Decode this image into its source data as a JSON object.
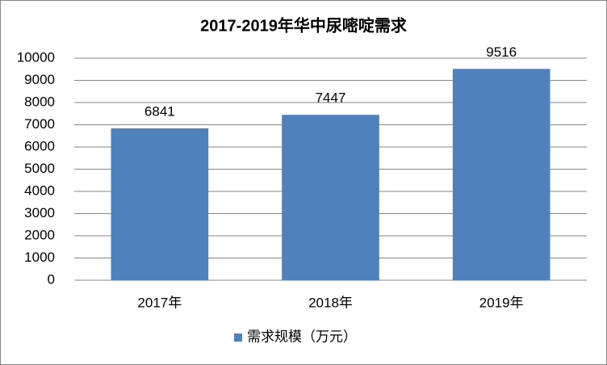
{
  "chart_data": {
    "type": "bar",
    "title": "2017-2019年华中尿嘧啶需求",
    "categories": [
      "2017年",
      "2018年",
      "2019年"
    ],
    "series": [
      {
        "name": "需求规模（万元）",
        "color": "#4f81bd",
        "values": [
          6841,
          7447,
          9516
        ]
      }
    ],
    "ylim": [
      0,
      10000
    ],
    "yticks": [
      0,
      1000,
      2000,
      3000,
      4000,
      5000,
      6000,
      7000,
      8000,
      9000,
      10000
    ],
    "grid": true,
    "legend": "bottom"
  }
}
